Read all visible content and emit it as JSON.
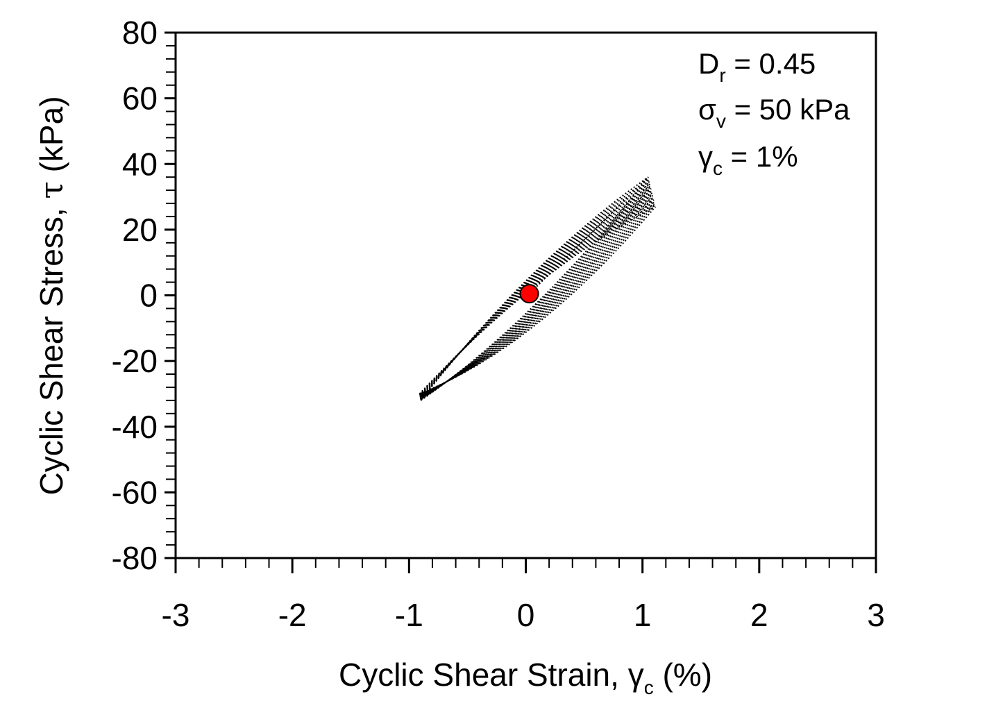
{
  "chart_data": {
    "type": "scatter",
    "title": "",
    "xlabel": {
      "text": "Cyclic Shear Strain, ",
      "symbol": "γ",
      "sub": "c",
      "unit": " (%)"
    },
    "ylabel": {
      "text": "Cyclic Shear Stress, ",
      "symbol": "τ",
      "unit": " (kPa)"
    },
    "xlim": [
      -3,
      3
    ],
    "ylim": [
      -80,
      80
    ],
    "x_ticks": [
      -3,
      -2,
      -1,
      0,
      1,
      2,
      3
    ],
    "x_tick_labels": [
      "-3",
      "-2",
      "-1",
      "0",
      "1",
      "2",
      "3"
    ],
    "y_ticks": [
      80,
      60,
      40,
      20,
      0,
      -20,
      -40,
      -60,
      -80
    ],
    "y_tick_labels": [
      "80",
      "60",
      "40",
      "20",
      "0",
      "-20",
      "-40",
      "-60",
      "-80"
    ],
    "x_minor_step": 0.2,
    "y_minor_step": 4,
    "grid": false,
    "annotations": [
      {
        "main": "D",
        "sub": "r",
        "rest": " = 0.45"
      },
      {
        "main": "σ",
        "sub": "v",
        "rest": " = 50 kPa"
      },
      {
        "main": "γ",
        "sub": "c",
        "rest": " = 1%"
      }
    ],
    "hysteresis": {
      "style": "dotted",
      "color": "#000000",
      "loops": 14,
      "strain_min": -0.9,
      "strain_max": 1.05,
      "stress_at_min": -32,
      "stress_at_max": 36,
      "stress_at_min_last": -30,
      "stress_at_max_last": 27
    },
    "start_point": {
      "x": 0.03,
      "y": 0.5,
      "color": "#ff0000"
    }
  }
}
